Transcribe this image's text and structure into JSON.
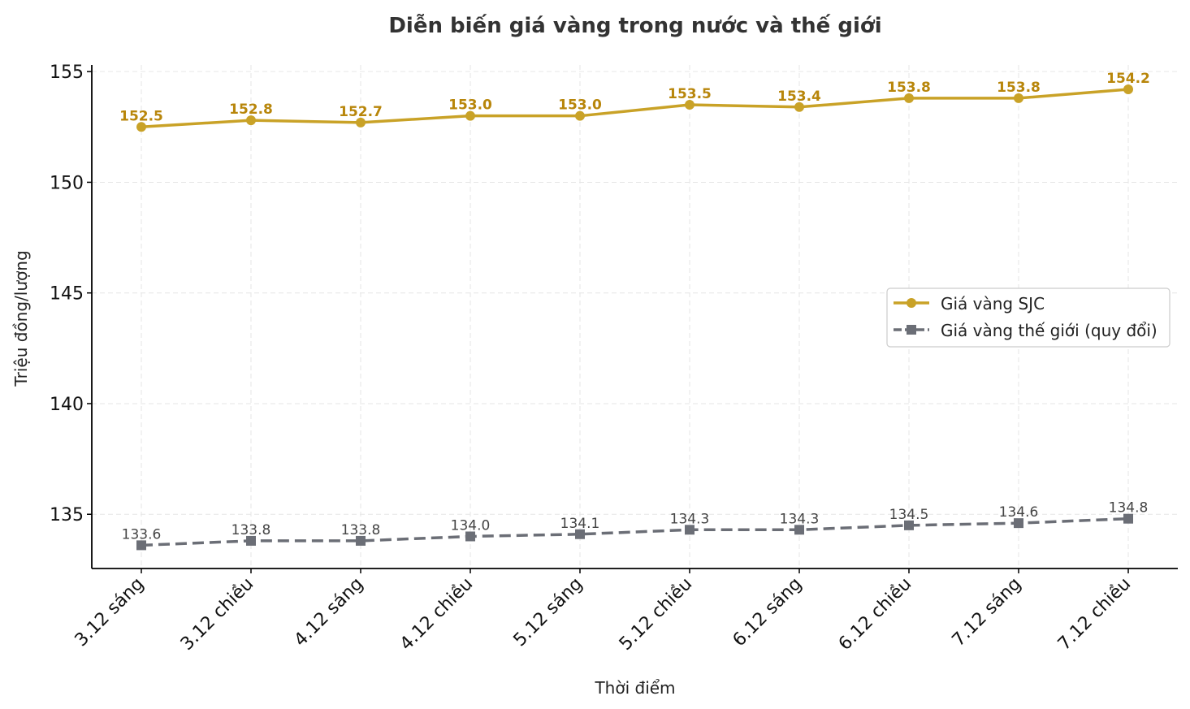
{
  "chart_data": {
    "type": "line",
    "title": "Diễn biến giá vàng trong nước và thế giới",
    "xlabel": "Thời điểm",
    "ylabel": "Triệu đồng/lượng",
    "categories": [
      "3.12 sáng",
      "3.12 chiều",
      "4.12 sáng",
      "4.12 chiều",
      "5.12 sáng",
      "5.12 chiều",
      "6.12 sáng",
      "6.12 chiều",
      "7.12 sáng",
      "7.12 chiều"
    ],
    "ylim": [
      132.55,
      155.3
    ],
    "yticks": [
      135,
      140,
      145,
      150,
      155
    ],
    "grid": true,
    "legend_position": "center-right",
    "series": [
      {
        "name": "Giá vàng SJC",
        "values": [
          152.5,
          152.8,
          152.7,
          153.0,
          153.0,
          153.5,
          153.4,
          153.8,
          153.8,
          154.2
        ],
        "color": "#C9A227",
        "label_color": "#B8860B",
        "marker": "circle",
        "linestyle": "solid"
      },
      {
        "name": "Giá vàng thế giới (quy đổi)",
        "values": [
          133.6,
          133.8,
          133.8,
          134.0,
          134.1,
          134.3,
          134.3,
          134.5,
          134.6,
          134.8
        ],
        "color": "#6B6E76",
        "label_color": "#444444",
        "marker": "square",
        "linestyle": "dashed"
      }
    ]
  }
}
